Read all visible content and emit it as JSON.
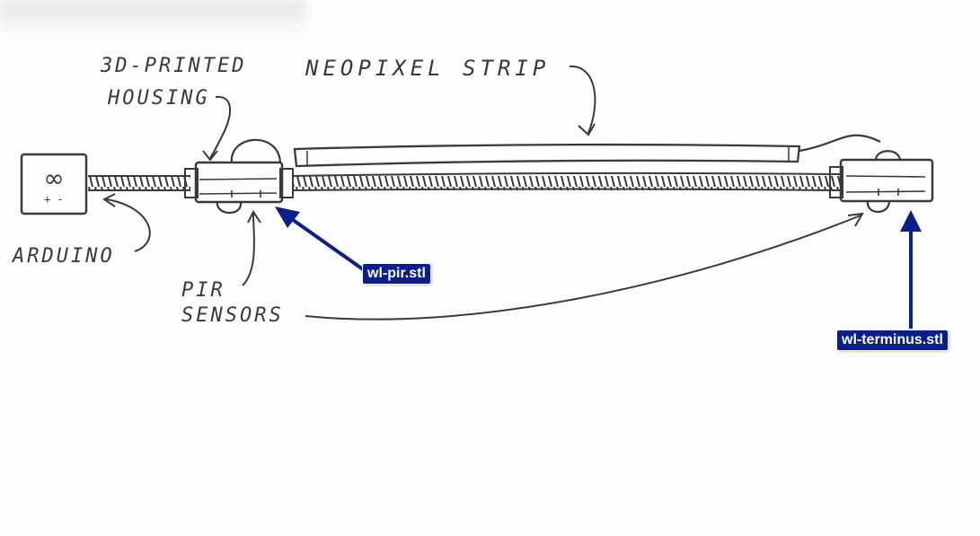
{
  "labels": {
    "housing_line1": "3D-PRINTED",
    "housing_line2": "HOUSING",
    "strip": "NEOPIXEL STRIP",
    "arduino": "ARDUINO",
    "pir_line1": "PIR",
    "pir_line2": "SENSORS"
  },
  "device": {
    "icon_symbol": "∞",
    "icon_polarity": "+ -"
  },
  "callouts": {
    "pir_file": "wl-pir.stl",
    "terminus_file": "wl-terminus.stl"
  },
  "colors": {
    "pencil": "#3a3a3a",
    "callout": "#0b1e8a"
  }
}
